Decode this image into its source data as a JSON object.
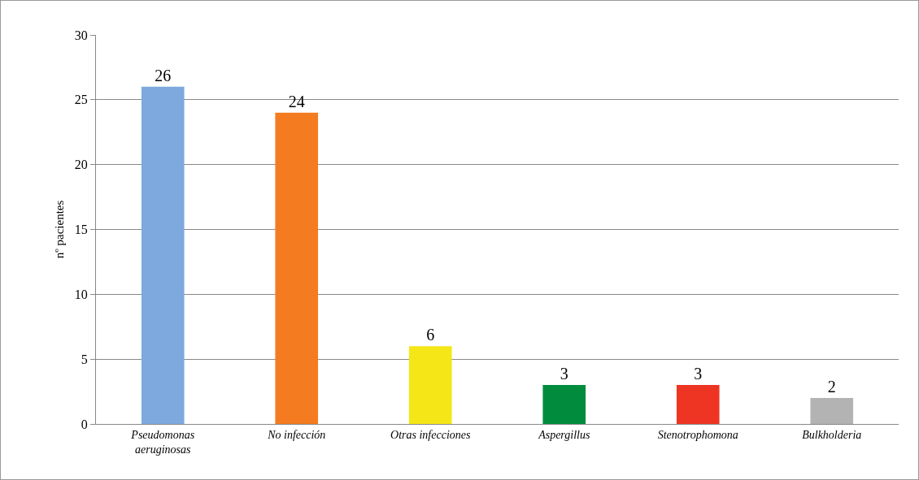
{
  "chart_data": {
    "type": "bar",
    "ylabel": "nº pacientes",
    "categories": [
      "Pseudomonas aeruginosas",
      "No infección",
      "Otras infecciones",
      "Aspergillus",
      "Stenotrophomona",
      "Bulkholderia"
    ],
    "values": [
      26,
      24,
      6,
      3,
      3,
      2
    ],
    "colors": [
      "#7ea9de",
      "#f47b20",
      "#f5e617",
      "#008c3c",
      "#ee3524",
      "#b3b3b3"
    ],
    "ylim": [
      0,
      30
    ],
    "yticks": [
      0,
      5,
      10,
      15,
      20,
      25,
      30
    ],
    "grid": "y",
    "data_labels": true
  }
}
